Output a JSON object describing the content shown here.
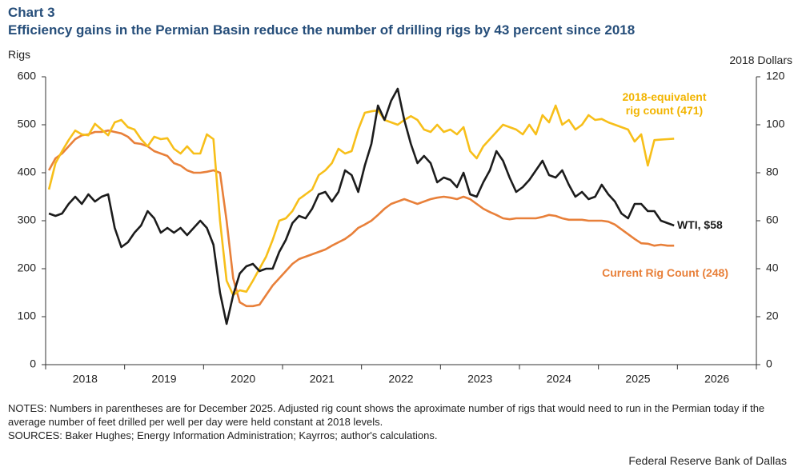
{
  "chart_data": {
    "type": "line",
    "title": "Chart 3",
    "subtitle": "Efficiency gains in the Permian Basin reduce the number of drilling rigs by 43 percent since 2018",
    "y_label": "Rigs",
    "y2_label": "2018 Dollars",
    "categories": [
      null,
      null,
      null,
      null,
      null,
      null,
      "2018",
      null,
      null,
      null,
      null,
      null,
      null,
      null,
      null,
      null,
      null,
      null,
      "2019",
      null,
      null,
      null,
      null,
      null,
      null,
      null,
      null,
      null,
      null,
      null,
      "2020",
      null,
      null,
      null,
      null,
      null,
      null,
      null,
      null,
      null,
      null,
      null,
      "2021",
      null,
      null,
      null,
      null,
      null,
      null,
      null,
      null,
      null,
      null,
      null,
      "2022",
      null,
      null,
      null,
      null,
      null,
      null,
      null,
      null,
      null,
      null,
      null,
      "2023",
      null,
      null,
      null,
      null,
      null,
      null,
      null,
      null,
      null,
      null,
      null,
      "2024",
      null,
      null,
      null,
      null,
      null,
      null,
      null,
      null,
      null,
      null,
      null,
      "2025",
      null,
      null,
      null,
      null,
      null,
      null,
      null,
      null,
      null,
      null,
      null,
      "2026",
      null,
      null,
      null,
      null,
      null
    ],
    "ylim": [
      0,
      600
    ],
    "yticks": [
      0,
      100,
      200,
      300,
      400,
      500,
      600
    ],
    "y2lim": [
      0,
      120
    ],
    "y2ticks": [
      0,
      20,
      40,
      60,
      80,
      100,
      120
    ],
    "grid": false,
    "series": [
      {
        "name": "Current Rig Count (248)",
        "color": "#e8803a",
        "axis": "y",
        "values": [
          405,
          430,
          440,
          455,
          470,
          478,
          480,
          485,
          485,
          488,
          485,
          482,
          475,
          462,
          460,
          455,
          445,
          440,
          435,
          420,
          415,
          405,
          400,
          400,
          402,
          405,
          400,
          300,
          180,
          130,
          122,
          122,
          125,
          145,
          165,
          180,
          195,
          210,
          220,
          225,
          230,
          235,
          240,
          248,
          255,
          262,
          272,
          285,
          292,
          300,
          312,
          325,
          335,
          340,
          345,
          340,
          335,
          340,
          345,
          348,
          350,
          348,
          345,
          350,
          345,
          335,
          325,
          318,
          312,
          305,
          303,
          305,
          305,
          305,
          305,
          308,
          312,
          310,
          305,
          302,
          302,
          302,
          300,
          300,
          300,
          298,
          292,
          282,
          272,
          262,
          253,
          252,
          248,
          250,
          248,
          248,
          null,
          null,
          null,
          null,
          null,
          null,
          null,
          null,
          null,
          null,
          null,
          null
        ]
      },
      {
        "name": [
          "2018-equivalent",
          "rig count (471)"
        ],
        "color": "#f7bf1a",
        "axis": "y",
        "values": [
          365,
          420,
          445,
          468,
          488,
          480,
          478,
          502,
          490,
          478,
          505,
          510,
          495,
          490,
          470,
          455,
          475,
          470,
          472,
          450,
          440,
          455,
          440,
          440,
          480,
          470,
          300,
          175,
          145,
          155,
          152,
          175,
          200,
          225,
          260,
          300,
          305,
          320,
          345,
          355,
          365,
          395,
          405,
          420,
          450,
          440,
          445,
          490,
          525,
          528,
          530,
          510,
          505,
          500,
          510,
          518,
          510,
          490,
          485,
          500,
          485,
          490,
          480,
          495,
          445,
          430,
          455,
          470,
          485,
          500,
          495,
          490,
          480,
          500,
          480,
          520,
          505,
          540,
          500,
          510,
          490,
          500,
          520,
          510,
          512,
          505,
          500,
          495,
          490,
          465,
          480,
          415,
          468,
          469,
          470,
          471,
          null,
          null,
          null,
          null,
          null,
          null,
          null,
          null,
          null,
          null,
          null,
          null
        ]
      },
      {
        "name": "WTI, $58",
        "color": "#1c1c1c",
        "axis": "y2",
        "values": [
          63,
          62,
          63,
          67,
          70,
          67,
          71,
          68,
          70,
          71,
          57,
          49,
          51,
          55,
          58,
          64,
          61,
          55,
          57,
          55,
          57,
          54,
          57,
          60,
          57,
          50,
          30,
          17,
          29,
          38,
          41,
          42,
          39,
          40,
          40,
          47,
          52,
          59,
          62,
          61,
          65,
          71,
          72,
          68,
          72,
          81,
          79,
          72,
          83,
          92,
          108,
          102,
          110,
          115,
          102,
          92,
          84,
          87,
          84,
          76,
          78,
          77,
          74,
          80,
          71,
          70,
          76,
          81,
          89,
          85,
          78,
          72,
          74,
          77,
          81,
          85,
          79,
          78,
          81,
          75,
          70,
          72,
          69,
          70,
          75,
          71,
          68,
          63,
          61,
          67,
          67,
          64,
          64,
          60,
          59,
          58,
          null,
          null,
          null,
          null,
          null,
          null,
          null,
          null,
          null,
          null,
          null,
          null
        ]
      }
    ],
    "notes": "NOTES: Numbers in parentheses are for December 2025. Adjusted rig count shows the aproximate number of rigs that would need to run in the Permian today if the average number of feet drilled per well per day were held constant at 2018 levels.",
    "sources": "SOURCES: Baker Hughes; Energy Information Administration; Kayrros; author's calculations.",
    "footer": "Federal Reserve Bank of Dallas"
  }
}
